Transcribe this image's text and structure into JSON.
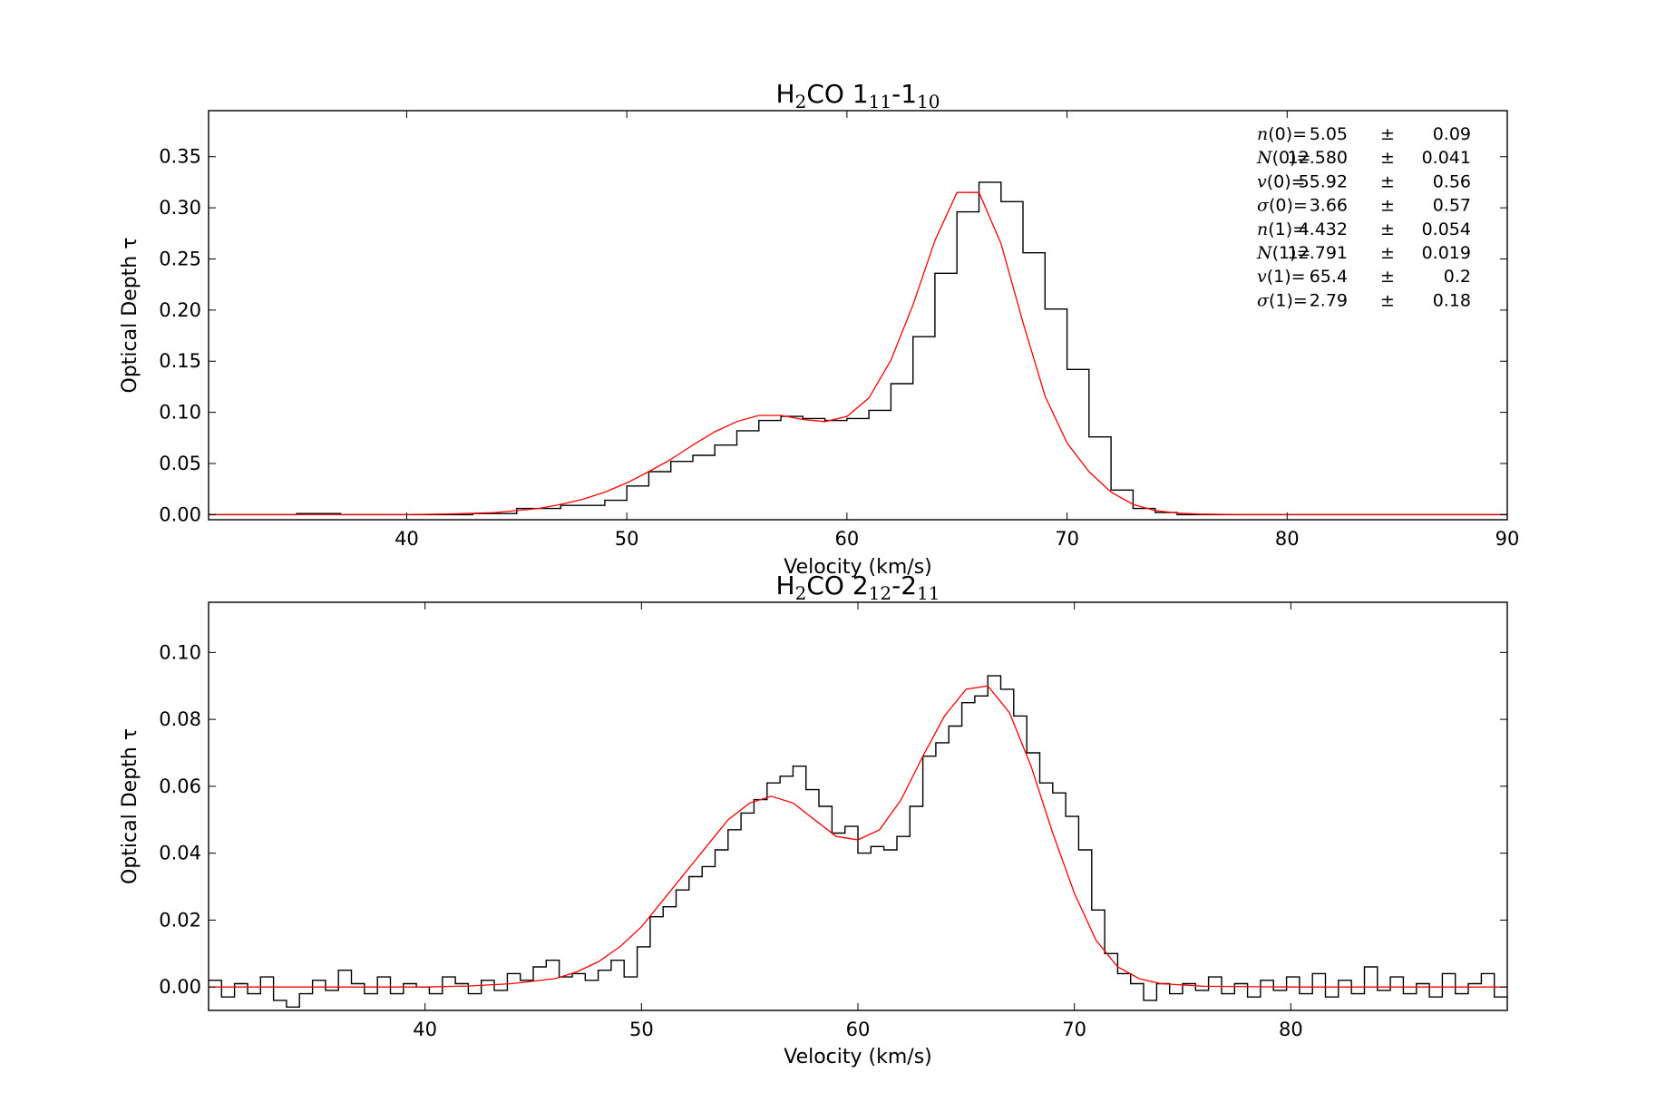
{
  "chart_data": [
    {
      "type": "line",
      "title": "H2CO 1_11-1_10",
      "title_parts": {
        "main": "H",
        "sub1": "2",
        "mid": "CO 1",
        "sub2": "11",
        "dash": "-1",
        "sub3": "10"
      },
      "xlabel": "Velocity (km/s)",
      "ylabel": "Optical Depth τ",
      "xlim": [
        31,
        90
      ],
      "ylim": [
        -0.005,
        0.395
      ],
      "xticks": [
        40,
        50,
        60,
        70,
        80,
        90
      ],
      "xtick_labels": [
        "40",
        "50",
        "60",
        "70",
        "80",
        "90"
      ],
      "yticks": [
        0.0,
        0.05,
        0.1,
        0.15,
        0.2,
        0.25,
        0.3,
        0.35
      ],
      "ytick_labels": [
        "0.00",
        "0.05",
        "0.10",
        "0.15",
        "0.20",
        "0.25",
        "0.30",
        "0.35"
      ],
      "colors": {
        "data": "#000000",
        "fit": "#ff0000"
      },
      "series": [
        {
          "style": "steps",
          "x": [
            31,
            33,
            35,
            37,
            39,
            41,
            43,
            45,
            47,
            49,
            50,
            51,
            52,
            53,
            54,
            55,
            56,
            57,
            58,
            59,
            60,
            61,
            62,
            63,
            64,
            65,
            66,
            67,
            68,
            69,
            70,
            71,
            72,
            73,
            74,
            75,
            77,
            79,
            81,
            83,
            85,
            87,
            89
          ],
          "y": [
            0.0,
            0.0,
            0.001,
            0.0,
            0.0,
            0.0,
            0.001,
            0.006,
            0.009,
            0.014,
            0.028,
            0.042,
            0.052,
            0.058,
            0.068,
            0.082,
            0.092,
            0.096,
            0.094,
            0.092,
            0.094,
            0.102,
            0.128,
            0.174,
            0.236,
            0.296,
            0.325,
            0.306,
            0.256,
            0.201,
            0.142,
            0.076,
            0.024,
            0.006,
            0.002,
            0.0,
            0.0,
            0.0,
            0.0,
            0.0,
            0.0,
            0.0,
            0.0
          ]
        },
        {
          "style": "line",
          "x": [
            31,
            36,
            40,
            42,
            44,
            46,
            47,
            48,
            49,
            50,
            51,
            52,
            53,
            54,
            55,
            56,
            57,
            58,
            59,
            60,
            61,
            62,
            63,
            64,
            65,
            66,
            67,
            68,
            69,
            70,
            71,
            72,
            73,
            74,
            75,
            76,
            78,
            82,
            86,
            90
          ],
          "y": [
            0.0,
            0.0,
            0.0,
            0.0006,
            0.002,
            0.006,
            0.01,
            0.015,
            0.022,
            0.031,
            0.042,
            0.054,
            0.068,
            0.081,
            0.091,
            0.097,
            0.097,
            0.093,
            0.091,
            0.096,
            0.114,
            0.151,
            0.205,
            0.268,
            0.315,
            0.315,
            0.265,
            0.188,
            0.116,
            0.07,
            0.042,
            0.022,
            0.01,
            0.004,
            0.0015,
            0.0005,
            0.0,
            0.0,
            0.0,
            0.0
          ]
        }
      ],
      "annotations": [
        {
          "sym": "n",
          "idx": "(0)",
          "value": "5.05",
          "pm": "±",
          "err": "0.09"
        },
        {
          "sym": "N",
          "idx": "(0)",
          "value": "12.580",
          "pm": "±",
          "err": "0.041"
        },
        {
          "sym": "v",
          "idx": "(0)",
          "value": "55.92",
          "pm": "±",
          "err": "0.56"
        },
        {
          "sym": "σ",
          "idx": "(0)",
          "value": "3.66",
          "pm": "±",
          "err": "0.57"
        },
        {
          "sym": "n",
          "idx": "(1)",
          "value": "4.432",
          "pm": "±",
          "err": "0.054"
        },
        {
          "sym": "N",
          "idx": "(1)",
          "value": "12.791",
          "pm": "±",
          "err": "0.019"
        },
        {
          "sym": "v",
          "idx": "(1)",
          "value": "65.4",
          "pm": "±",
          "err": "0.2"
        },
        {
          "sym": "σ",
          "idx": "(1)",
          "value": "2.79",
          "pm": "±",
          "err": "0.18"
        }
      ]
    },
    {
      "type": "line",
      "title": "H2CO 2_12-2_11",
      "title_parts": {
        "main": "H",
        "sub1": "2",
        "mid": "CO 2",
        "sub2": "12",
        "dash": "-2",
        "sub3": "11"
      },
      "xlabel": "Velocity (km/s)",
      "ylabel": "Optical Depth τ",
      "xlim": [
        30,
        90
      ],
      "ylim": [
        -0.007,
        0.115
      ],
      "xticks": [
        40,
        50,
        60,
        70,
        80
      ],
      "xtick_labels": [
        "40",
        "50",
        "60",
        "70",
        "80"
      ],
      "yticks": [
        0.0,
        0.02,
        0.04,
        0.06,
        0.08,
        0.1
      ],
      "ytick_labels": [
        "0.00",
        "0.02",
        "0.04",
        "0.06",
        "0.08",
        "0.10"
      ],
      "colors": {
        "data": "#000000",
        "fit": "#ff0000"
      },
      "series": [
        {
          "style": "steps",
          "x": [
            30,
            30.6,
            31.2,
            31.8,
            32.4,
            33,
            33.6,
            34.2,
            34.8,
            35.4,
            36,
            36.6,
            37.2,
            37.8,
            38.4,
            39,
            39.6,
            40.2,
            40.8,
            41.4,
            42,
            42.6,
            43.2,
            43.8,
            44.4,
            45,
            45.6,
            46.2,
            46.8,
            47.4,
            48,
            48.6,
            49.2,
            49.8,
            50.4,
            51,
            51.6,
            52.2,
            52.8,
            53.4,
            54,
            54.6,
            55.2,
            55.8,
            56.4,
            57,
            57.6,
            58.2,
            58.8,
            59.4,
            60,
            60.6,
            61.2,
            61.8,
            62.4,
            63,
            63.6,
            64.2,
            64.8,
            65.4,
            66,
            66.6,
            67.2,
            67.8,
            68.4,
            69,
            69.6,
            70.2,
            70.8,
            71.4,
            72,
            72.6,
            73.2,
            73.8,
            74.4,
            75,
            75.6,
            76.2,
            76.8,
            77.4,
            78,
            78.6,
            79.2,
            79.8,
            80.4,
            81,
            81.6,
            82.2,
            82.8,
            83.4,
            84,
            84.6,
            85.2,
            85.8,
            86.4,
            87,
            87.6,
            88.2,
            88.8,
            89.4
          ],
          "y": [
            0.002,
            -0.003,
            0.001,
            -0.002,
            0.003,
            -0.004,
            -0.006,
            -0.002,
            0.002,
            -0.001,
            0.005,
            0.001,
            -0.002,
            0.003,
            -0.002,
            0.001,
            0.0,
            -0.002,
            0.003,
            0.001,
            -0.002,
            0.002,
            -0.001,
            0.004,
            0.002,
            0.006,
            0.008,
            0.003,
            0.004,
            0.002,
            0.005,
            0.008,
            0.003,
            0.012,
            0.021,
            0.024,
            0.029,
            0.033,
            0.036,
            0.041,
            0.047,
            0.052,
            0.056,
            0.061,
            0.063,
            0.066,
            0.059,
            0.054,
            0.046,
            0.048,
            0.04,
            0.042,
            0.041,
            0.045,
            0.054,
            0.069,
            0.073,
            0.078,
            0.085,
            0.087,
            0.093,
            0.089,
            0.081,
            0.07,
            0.061,
            0.058,
            0.051,
            0.041,
            0.023,
            0.01,
            0.004,
            0.001,
            -0.004,
            0.001,
            -0.002,
            0.001,
            -0.001,
            0.003,
            -0.002,
            0.001,
            -0.003,
            0.002,
            -0.001,
            0.003,
            -0.002,
            0.004,
            -0.003,
            0.002,
            -0.002,
            0.006,
            -0.001,
            0.003,
            -0.002,
            0.001,
            -0.003,
            0.004,
            -0.002,
            0.001,
            0.004,
            -0.003
          ]
        },
        {
          "style": "line",
          "x": [
            30,
            35,
            40,
            42,
            44,
            46,
            47,
            48,
            49,
            50,
            51,
            52,
            53,
            54,
            55,
            56,
            57,
            58,
            59,
            60,
            61,
            62,
            63,
            64,
            65,
            66,
            67,
            68,
            69,
            70,
            71,
            72,
            73,
            74,
            76,
            80,
            85,
            90
          ],
          "y": [
            0.0,
            0.0,
            0.0,
            0.0003,
            0.001,
            0.0025,
            0.0045,
            0.0075,
            0.012,
            0.018,
            0.026,
            0.034,
            0.042,
            0.05,
            0.055,
            0.057,
            0.055,
            0.05,
            0.045,
            0.044,
            0.047,
            0.056,
            0.069,
            0.081,
            0.089,
            0.09,
            0.082,
            0.066,
            0.046,
            0.028,
            0.014,
            0.006,
            0.0025,
            0.001,
            0.0002,
            0.0,
            0.0,
            0.0
          ]
        }
      ]
    }
  ]
}
